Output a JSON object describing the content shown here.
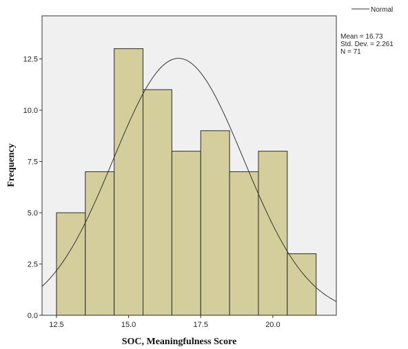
{
  "chart_data": {
    "type": "histogram",
    "xlabel": "SOC, Meaningfulness Score",
    "ylabel": "Frequency",
    "xlim": [
      12.0,
      22.2
    ],
    "ylim": [
      0,
      14.6
    ],
    "bin_width": 1.0,
    "bins": [
      {
        "center": 13,
        "count": 5
      },
      {
        "center": 14,
        "count": 7
      },
      {
        "center": 15,
        "count": 13
      },
      {
        "center": 16,
        "count": 11
      },
      {
        "center": 17,
        "count": 8
      },
      {
        "center": 18,
        "count": 9
      },
      {
        "center": 19,
        "count": 7
      },
      {
        "center": 20,
        "count": 8
      },
      {
        "center": 21,
        "count": 3
      }
    ],
    "x_ticks": [
      {
        "value": 12.5,
        "label": "12.5"
      },
      {
        "value": 15.0,
        "label": "15.0"
      },
      {
        "value": 17.5,
        "label": "17.5"
      },
      {
        "value": 20.0,
        "label": "20.0"
      }
    ],
    "y_ticks": [
      {
        "value": 0,
        "label": "0.0"
      },
      {
        "value": 2.5,
        "label": "2.5"
      },
      {
        "value": 5.0,
        "label": "5.0"
      },
      {
        "value": 7.5,
        "label": "7.5"
      },
      {
        "value": 10.0,
        "label": "10.0"
      },
      {
        "value": 12.5,
        "label": "12.5"
      }
    ],
    "normal_curve": {
      "mean": 16.73,
      "std_dev": 2.261,
      "n": 71
    },
    "legend": {
      "label": "Normal",
      "position": "top-right"
    },
    "stats_lines": [
      "Mean = 16.73",
      "Std. Dev. = 2.261",
      "N = 71"
    ],
    "colors": {
      "plot_background": "#f0f0f0",
      "bar_fill": "#d3ce9c",
      "bar_stroke": "#2a2a2a",
      "curve": "#333333",
      "frame": "#333333"
    }
  }
}
